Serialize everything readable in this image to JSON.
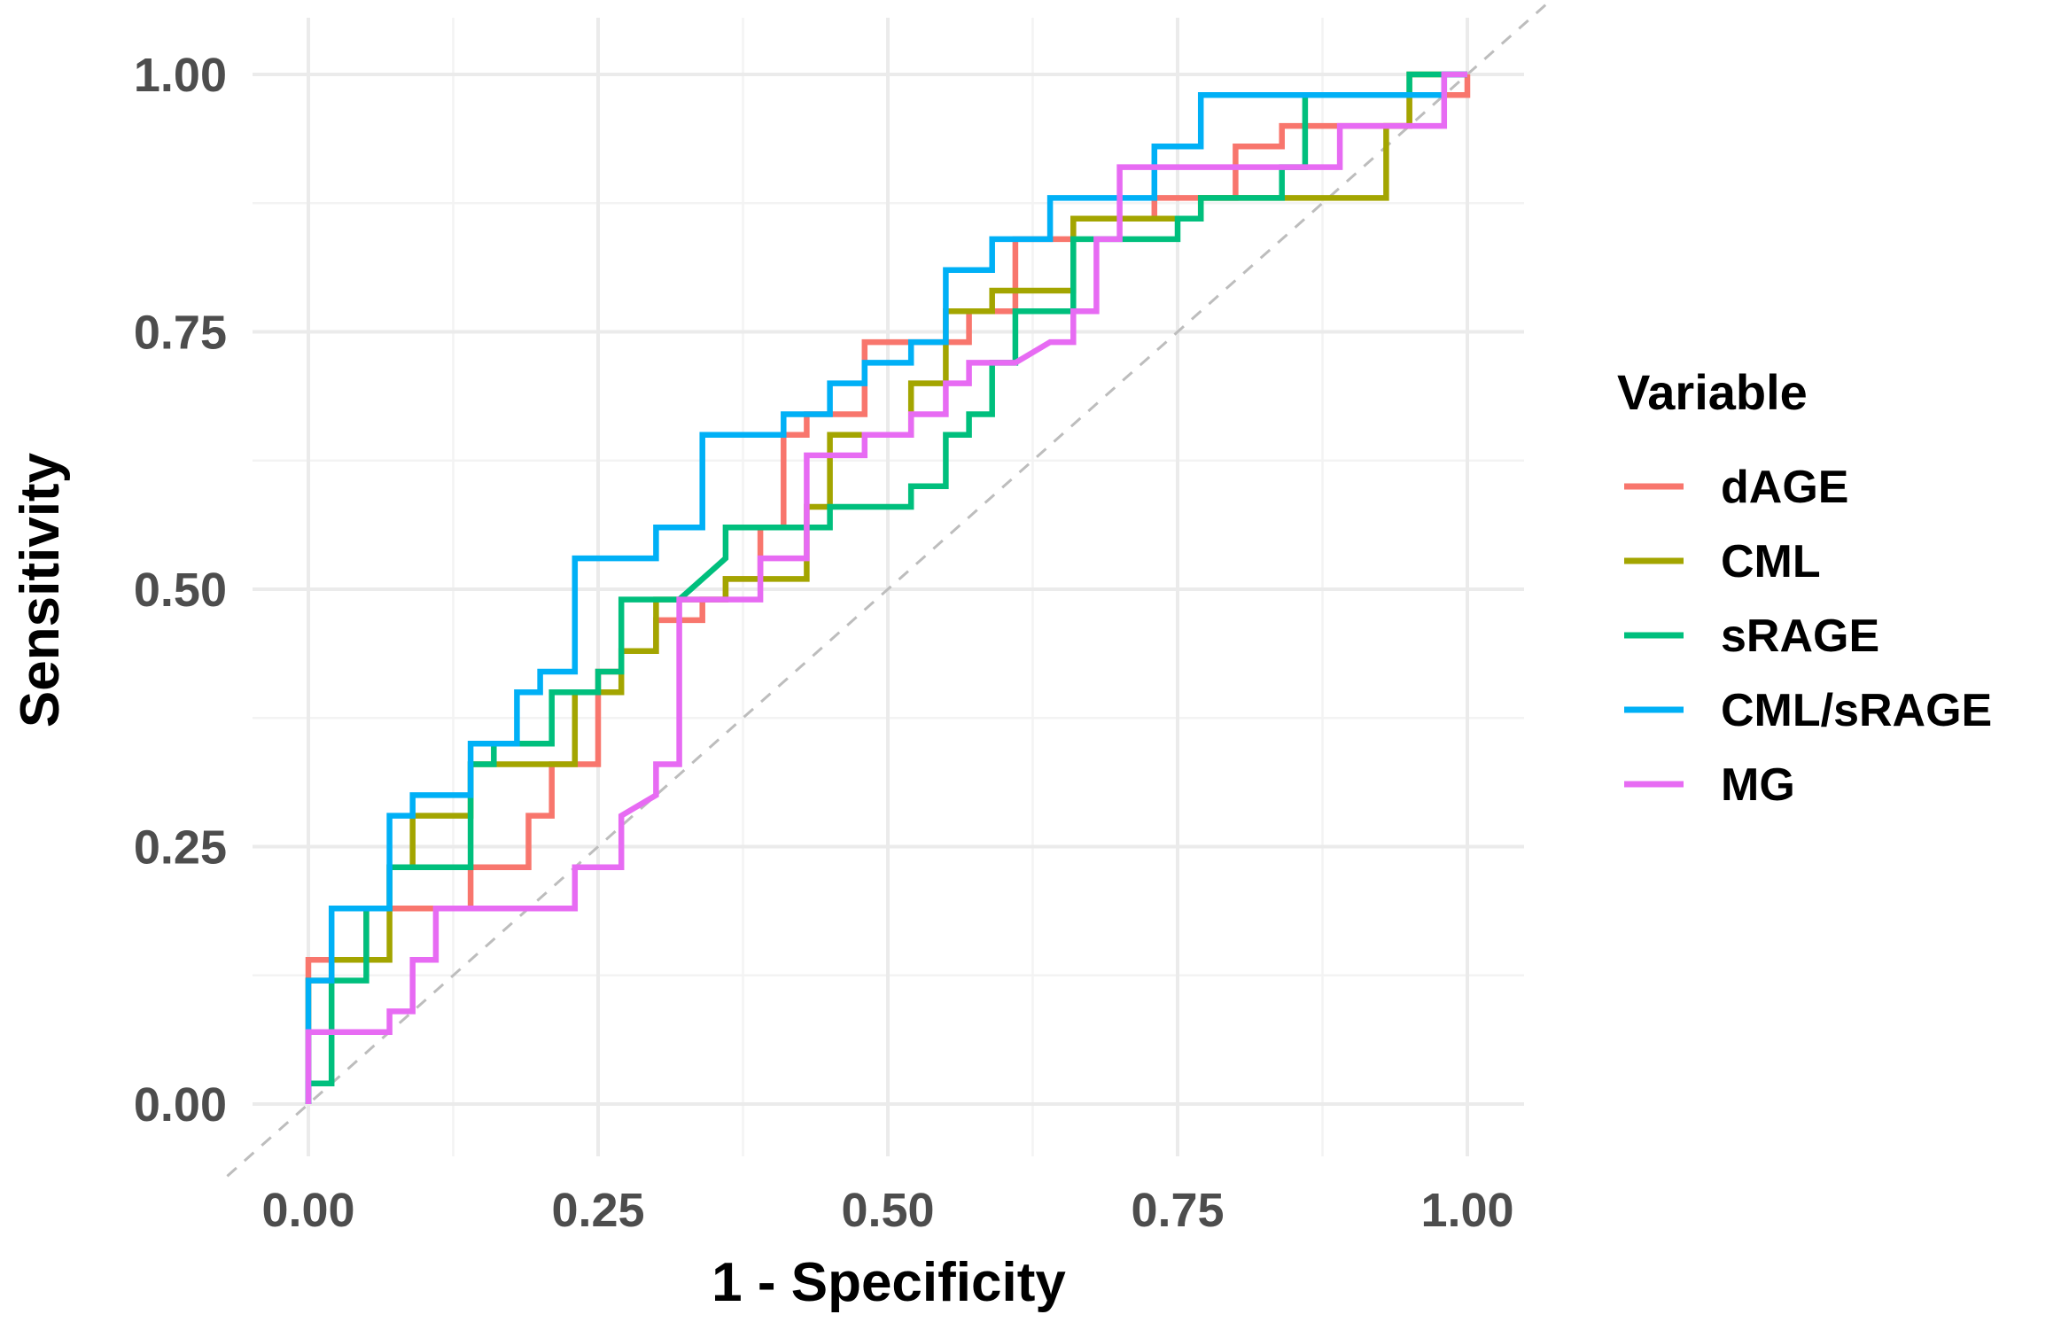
{
  "chart_data": {
    "type": "line",
    "title": "",
    "xlabel": "1 - Specificity",
    "ylabel": "Sensitivity",
    "xlim": [
      0,
      1
    ],
    "ylim": [
      0,
      1
    ],
    "x_ticks": [
      "0.00",
      "0.25",
      "0.50",
      "0.75",
      "1.00"
    ],
    "y_ticks": [
      "0.00",
      "0.25",
      "0.50",
      "0.75",
      "1.00"
    ],
    "grid": true,
    "reference_line": "diagonal",
    "legend": {
      "title": "Variable",
      "position": "right"
    },
    "series": [
      {
        "name": "dAGE",
        "color": "#F8766D",
        "points": [
          [
            0,
            0
          ],
          [
            0,
            0.14
          ],
          [
            0.05,
            0.14
          ],
          [
            0.05,
            0.19
          ],
          [
            0.14,
            0.19
          ],
          [
            0.14,
            0.23
          ],
          [
            0.19,
            0.23
          ],
          [
            0.19,
            0.28
          ],
          [
            0.21,
            0.28
          ],
          [
            0.21,
            0.33
          ],
          [
            0.25,
            0.33
          ],
          [
            0.25,
            0.42
          ],
          [
            0.27,
            0.42
          ],
          [
            0.27,
            0.44
          ],
          [
            0.3,
            0.44
          ],
          [
            0.3,
            0.47
          ],
          [
            0.34,
            0.47
          ],
          [
            0.34,
            0.49
          ],
          [
            0.36,
            0.49
          ],
          [
            0.36,
            0.51
          ],
          [
            0.39,
            0.51
          ],
          [
            0.39,
            0.56
          ],
          [
            0.41,
            0.56
          ],
          [
            0.41,
            0.65
          ],
          [
            0.43,
            0.65
          ],
          [
            0.43,
            0.67
          ],
          [
            0.48,
            0.67
          ],
          [
            0.48,
            0.74
          ],
          [
            0.57,
            0.74
          ],
          [
            0.57,
            0.77
          ],
          [
            0.61,
            0.77
          ],
          [
            0.61,
            0.84
          ],
          [
            0.66,
            0.84
          ],
          [
            0.66,
            0.86
          ],
          [
            0.73,
            0.86
          ],
          [
            0.73,
            0.88
          ],
          [
            0.8,
            0.88
          ],
          [
            0.8,
            0.93
          ],
          [
            0.84,
            0.93
          ],
          [
            0.84,
            0.95
          ],
          [
            0.95,
            0.95
          ],
          [
            0.95,
            0.98
          ],
          [
            1,
            0.98
          ],
          [
            1,
            1
          ]
        ]
      },
      {
        "name": "CML",
        "color": "#A3A500",
        "points": [
          [
            0,
            0
          ],
          [
            0,
            0.12
          ],
          [
            0.02,
            0.12
          ],
          [
            0.02,
            0.14
          ],
          [
            0.07,
            0.14
          ],
          [
            0.07,
            0.23
          ],
          [
            0.09,
            0.23
          ],
          [
            0.09,
            0.28
          ],
          [
            0.14,
            0.28
          ],
          [
            0.14,
            0.33
          ],
          [
            0.23,
            0.33
          ],
          [
            0.23,
            0.4
          ],
          [
            0.27,
            0.4
          ],
          [
            0.27,
            0.44
          ],
          [
            0.3,
            0.44
          ],
          [
            0.3,
            0.49
          ],
          [
            0.36,
            0.49
          ],
          [
            0.36,
            0.51
          ],
          [
            0.43,
            0.51
          ],
          [
            0.43,
            0.58
          ],
          [
            0.45,
            0.58
          ],
          [
            0.45,
            0.65
          ],
          [
            0.52,
            0.65
          ],
          [
            0.52,
            0.7
          ],
          [
            0.55,
            0.7
          ],
          [
            0.55,
            0.77
          ],
          [
            0.59,
            0.77
          ],
          [
            0.59,
            0.79
          ],
          [
            0.66,
            0.79
          ],
          [
            0.66,
            0.86
          ],
          [
            0.77,
            0.86
          ],
          [
            0.77,
            0.88
          ],
          [
            0.93,
            0.88
          ],
          [
            0.93,
            0.95
          ],
          [
            0.95,
            0.95
          ],
          [
            0.95,
            1
          ],
          [
            1,
            1
          ]
        ]
      },
      {
        "name": "sRAGE",
        "color": "#00BF7D",
        "points": [
          [
            0,
            0
          ],
          [
            0,
            0.02
          ],
          [
            0.02,
            0.02
          ],
          [
            0.02,
            0.12
          ],
          [
            0.05,
            0.12
          ],
          [
            0.05,
            0.19
          ],
          [
            0.07,
            0.19
          ],
          [
            0.07,
            0.23
          ],
          [
            0.14,
            0.23
          ],
          [
            0.14,
            0.33
          ],
          [
            0.16,
            0.33
          ],
          [
            0.16,
            0.35
          ],
          [
            0.21,
            0.35
          ],
          [
            0.21,
            0.4
          ],
          [
            0.25,
            0.4
          ],
          [
            0.25,
            0.42
          ],
          [
            0.27,
            0.42
          ],
          [
            0.27,
            0.49
          ],
          [
            0.32,
            0.49
          ],
          [
            0.36,
            0.53
          ],
          [
            0.36,
            0.56
          ],
          [
            0.45,
            0.56
          ],
          [
            0.45,
            0.58
          ],
          [
            0.52,
            0.58
          ],
          [
            0.52,
            0.6
          ],
          [
            0.55,
            0.6
          ],
          [
            0.55,
            0.65
          ],
          [
            0.57,
            0.65
          ],
          [
            0.57,
            0.67
          ],
          [
            0.59,
            0.67
          ],
          [
            0.59,
            0.72
          ],
          [
            0.61,
            0.72
          ],
          [
            0.61,
            0.77
          ],
          [
            0.66,
            0.77
          ],
          [
            0.66,
            0.84
          ],
          [
            0.75,
            0.84
          ],
          [
            0.75,
            0.86
          ],
          [
            0.77,
            0.86
          ],
          [
            0.77,
            0.88
          ],
          [
            0.84,
            0.88
          ],
          [
            0.84,
            0.91
          ],
          [
            0.86,
            0.91
          ],
          [
            0.86,
            0.98
          ],
          [
            0.95,
            0.98
          ],
          [
            0.95,
            1
          ],
          [
            1,
            1
          ]
        ]
      },
      {
        "name": "CML/sRAGE",
        "color": "#00B0F6",
        "points": [
          [
            0,
            0
          ],
          [
            0,
            0.12
          ],
          [
            0.02,
            0.12
          ],
          [
            0.02,
            0.19
          ],
          [
            0.07,
            0.19
          ],
          [
            0.07,
            0.28
          ],
          [
            0.09,
            0.28
          ],
          [
            0.09,
            0.3
          ],
          [
            0.14,
            0.3
          ],
          [
            0.14,
            0.35
          ],
          [
            0.18,
            0.35
          ],
          [
            0.18,
            0.4
          ],
          [
            0.2,
            0.4
          ],
          [
            0.2,
            0.42
          ],
          [
            0.23,
            0.42
          ],
          [
            0.23,
            0.53
          ],
          [
            0.3,
            0.53
          ],
          [
            0.3,
            0.56
          ],
          [
            0.34,
            0.56
          ],
          [
            0.34,
            0.65
          ],
          [
            0.41,
            0.65
          ],
          [
            0.41,
            0.67
          ],
          [
            0.45,
            0.67
          ],
          [
            0.45,
            0.7
          ],
          [
            0.48,
            0.7
          ],
          [
            0.48,
            0.72
          ],
          [
            0.52,
            0.72
          ],
          [
            0.52,
            0.74
          ],
          [
            0.55,
            0.74
          ],
          [
            0.55,
            0.81
          ],
          [
            0.59,
            0.81
          ],
          [
            0.59,
            0.84
          ],
          [
            0.64,
            0.84
          ],
          [
            0.64,
            0.88
          ],
          [
            0.73,
            0.88
          ],
          [
            0.73,
            0.93
          ],
          [
            0.77,
            0.93
          ],
          [
            0.77,
            0.98
          ],
          [
            0.98,
            0.98
          ],
          [
            0.98,
            1
          ],
          [
            1,
            1
          ]
        ]
      },
      {
        "name": "MG",
        "color": "#E76BF3",
        "points": [
          [
            0,
            0
          ],
          [
            0,
            0.07
          ],
          [
            0.07,
            0.07
          ],
          [
            0.07,
            0.09
          ],
          [
            0.09,
            0.09
          ],
          [
            0.09,
            0.14
          ],
          [
            0.11,
            0.14
          ],
          [
            0.11,
            0.19
          ],
          [
            0.23,
            0.19
          ],
          [
            0.23,
            0.23
          ],
          [
            0.27,
            0.23
          ],
          [
            0.27,
            0.28
          ],
          [
            0.3,
            0.3
          ],
          [
            0.3,
            0.33
          ],
          [
            0.32,
            0.33
          ],
          [
            0.32,
            0.49
          ],
          [
            0.39,
            0.49
          ],
          [
            0.39,
            0.53
          ],
          [
            0.43,
            0.53
          ],
          [
            0.43,
            0.63
          ],
          [
            0.48,
            0.63
          ],
          [
            0.48,
            0.65
          ],
          [
            0.52,
            0.65
          ],
          [
            0.52,
            0.67
          ],
          [
            0.55,
            0.67
          ],
          [
            0.55,
            0.7
          ],
          [
            0.57,
            0.7
          ],
          [
            0.57,
            0.72
          ],
          [
            0.61,
            0.72
          ],
          [
            0.64,
            0.74
          ],
          [
            0.66,
            0.74
          ],
          [
            0.66,
            0.77
          ],
          [
            0.68,
            0.77
          ],
          [
            0.68,
            0.84
          ],
          [
            0.7,
            0.84
          ],
          [
            0.7,
            0.91
          ],
          [
            0.89,
            0.91
          ],
          [
            0.89,
            0.95
          ],
          [
            0.98,
            0.95
          ],
          [
            0.98,
            1
          ],
          [
            1,
            1
          ]
        ]
      }
    ]
  }
}
